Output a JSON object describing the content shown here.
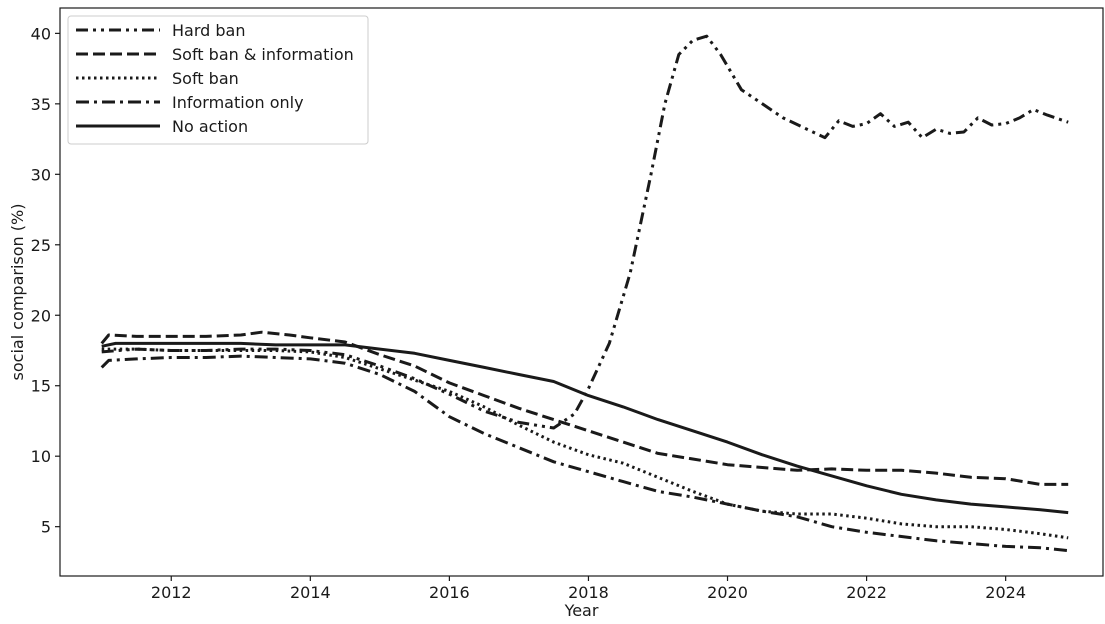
{
  "chart_data": {
    "type": "line",
    "title": "",
    "xlabel": "Year",
    "ylabel": "social comparison (%)",
    "xlim": [
      2010.4,
      2025.4
    ],
    "ylim": [
      1.5,
      41.8
    ],
    "xticks": [
      2012,
      2014,
      2016,
      2018,
      2020,
      2022,
      2024
    ],
    "xtick_labels": [
      "2012",
      "2014",
      "2016",
      "2018",
      "2020",
      "2022",
      "2024"
    ],
    "yticks": [
      5,
      10,
      15,
      20,
      25,
      30,
      35,
      40
    ],
    "ytick_labels": [
      "5",
      "10",
      "15",
      "20",
      "25",
      "30",
      "35",
      "40"
    ],
    "grid": false,
    "legend_position": "top-left",
    "line_color": "#1a1a1a",
    "series": [
      {
        "name": "Hard ban",
        "style": "dashdotdot",
        "points": [
          [
            2011.0,
            17.4
          ],
          [
            2011.5,
            17.6
          ],
          [
            2012.0,
            17.5
          ],
          [
            2012.5,
            17.5
          ],
          [
            2013.0,
            17.6
          ],
          [
            2013.5,
            17.6
          ],
          [
            2014.0,
            17.5
          ],
          [
            2014.5,
            17.2
          ],
          [
            2015.0,
            16.4
          ],
          [
            2015.5,
            15.5
          ],
          [
            2016.0,
            14.4
          ],
          [
            2016.5,
            13.2
          ],
          [
            2017.0,
            12.4
          ],
          [
            2017.5,
            12.0
          ],
          [
            2017.8,
            13.0
          ],
          [
            2018.0,
            14.8
          ],
          [
            2018.3,
            18.0
          ],
          [
            2018.6,
            23.0
          ],
          [
            2018.9,
            30.0
          ],
          [
            2019.1,
            35.0
          ],
          [
            2019.3,
            38.5
          ],
          [
            2019.5,
            39.5
          ],
          [
            2019.7,
            39.8
          ],
          [
            2019.9,
            38.5
          ],
          [
            2020.2,
            36.0
          ],
          [
            2020.5,
            35.0
          ],
          [
            2020.8,
            34.0
          ],
          [
            2021.1,
            33.3
          ],
          [
            2021.4,
            32.6
          ],
          [
            2021.6,
            33.8
          ],
          [
            2021.8,
            33.4
          ],
          [
            2022.0,
            33.6
          ],
          [
            2022.2,
            34.3
          ],
          [
            2022.4,
            33.4
          ],
          [
            2022.6,
            33.7
          ],
          [
            2022.8,
            32.6
          ],
          [
            2023.0,
            33.2
          ],
          [
            2023.2,
            32.9
          ],
          [
            2023.4,
            33.0
          ],
          [
            2023.6,
            34.0
          ],
          [
            2023.8,
            33.5
          ],
          [
            2024.0,
            33.6
          ],
          [
            2024.2,
            34.0
          ],
          [
            2024.4,
            34.6
          ],
          [
            2024.6,
            34.2
          ],
          [
            2024.9,
            33.7
          ]
        ]
      },
      {
        "name": "Soft ban & information",
        "style": "dashed",
        "points": [
          [
            2011.0,
            18.0
          ],
          [
            2011.1,
            18.6
          ],
          [
            2011.5,
            18.5
          ],
          [
            2012.0,
            18.5
          ],
          [
            2012.5,
            18.5
          ],
          [
            2013.0,
            18.6
          ],
          [
            2013.3,
            18.8
          ],
          [
            2013.7,
            18.6
          ],
          [
            2014.0,
            18.4
          ],
          [
            2014.5,
            18.1
          ],
          [
            2015.0,
            17.2
          ],
          [
            2015.5,
            16.4
          ],
          [
            2016.0,
            15.2
          ],
          [
            2016.5,
            14.3
          ],
          [
            2017.0,
            13.4
          ],
          [
            2017.5,
            12.6
          ],
          [
            2018.0,
            11.8
          ],
          [
            2018.5,
            11.0
          ],
          [
            2019.0,
            10.2
          ],
          [
            2019.5,
            9.8
          ],
          [
            2020.0,
            9.4
          ],
          [
            2020.5,
            9.2
          ],
          [
            2021.0,
            9.0
          ],
          [
            2021.5,
            9.1
          ],
          [
            2022.0,
            9.0
          ],
          [
            2022.5,
            9.0
          ],
          [
            2023.0,
            8.8
          ],
          [
            2023.5,
            8.5
          ],
          [
            2024.0,
            8.4
          ],
          [
            2024.5,
            8.0
          ],
          [
            2024.9,
            8.0
          ]
        ]
      },
      {
        "name": "Soft ban",
        "style": "dotted",
        "points": [
          [
            2011.0,
            17.6
          ],
          [
            2011.5,
            17.6
          ],
          [
            2012.0,
            17.5
          ],
          [
            2012.5,
            17.5
          ],
          [
            2013.0,
            17.5
          ],
          [
            2013.5,
            17.5
          ],
          [
            2014.0,
            17.4
          ],
          [
            2014.5,
            17.0
          ],
          [
            2015.0,
            16.2
          ],
          [
            2015.5,
            15.4
          ],
          [
            2016.0,
            14.6
          ],
          [
            2016.5,
            13.5
          ],
          [
            2017.0,
            12.2
          ],
          [
            2017.5,
            11.0
          ],
          [
            2018.0,
            10.1
          ],
          [
            2018.5,
            9.5
          ],
          [
            2019.0,
            8.5
          ],
          [
            2019.5,
            7.5
          ],
          [
            2020.0,
            6.6
          ],
          [
            2020.5,
            6.1
          ],
          [
            2021.0,
            5.9
          ],
          [
            2021.5,
            5.9
          ],
          [
            2022.0,
            5.6
          ],
          [
            2022.5,
            5.2
          ],
          [
            2023.0,
            5.0
          ],
          [
            2023.5,
            5.0
          ],
          [
            2024.0,
            4.8
          ],
          [
            2024.5,
            4.5
          ],
          [
            2024.9,
            4.2
          ]
        ]
      },
      {
        "name": "Information only",
        "style": "dashdot",
        "points": [
          [
            2011.0,
            16.3
          ],
          [
            2011.1,
            16.8
          ],
          [
            2011.5,
            16.9
          ],
          [
            2012.0,
            17.0
          ],
          [
            2012.5,
            17.0
          ],
          [
            2013.0,
            17.1
          ],
          [
            2013.5,
            17.0
          ],
          [
            2014.0,
            16.9
          ],
          [
            2014.5,
            16.6
          ],
          [
            2015.0,
            15.8
          ],
          [
            2015.5,
            14.6
          ],
          [
            2016.0,
            12.8
          ],
          [
            2016.5,
            11.6
          ],
          [
            2017.0,
            10.6
          ],
          [
            2017.5,
            9.6
          ],
          [
            2018.0,
            8.9
          ],
          [
            2018.5,
            8.2
          ],
          [
            2019.0,
            7.5
          ],
          [
            2019.5,
            7.1
          ],
          [
            2020.0,
            6.6
          ],
          [
            2020.5,
            6.1
          ],
          [
            2021.0,
            5.7
          ],
          [
            2021.5,
            5.0
          ],
          [
            2022.0,
            4.6
          ],
          [
            2022.5,
            4.3
          ],
          [
            2023.0,
            4.0
          ],
          [
            2023.5,
            3.8
          ],
          [
            2024.0,
            3.6
          ],
          [
            2024.5,
            3.5
          ],
          [
            2024.9,
            3.3
          ]
        ]
      },
      {
        "name": "No action",
        "style": "solid",
        "points": [
          [
            2011.0,
            17.8
          ],
          [
            2011.2,
            18.0
          ],
          [
            2011.5,
            18.0
          ],
          [
            2012.0,
            18.0
          ],
          [
            2012.5,
            18.0
          ],
          [
            2013.0,
            18.0
          ],
          [
            2013.5,
            17.9
          ],
          [
            2014.0,
            17.9
          ],
          [
            2014.5,
            17.9
          ],
          [
            2015.0,
            17.6
          ],
          [
            2015.5,
            17.3
          ],
          [
            2016.0,
            16.8
          ],
          [
            2016.5,
            16.3
          ],
          [
            2017.0,
            15.8
          ],
          [
            2017.5,
            15.3
          ],
          [
            2018.0,
            14.3
          ],
          [
            2018.5,
            13.5
          ],
          [
            2019.0,
            12.6
          ],
          [
            2019.5,
            11.8
          ],
          [
            2020.0,
            11.0
          ],
          [
            2020.5,
            10.1
          ],
          [
            2021.0,
            9.3
          ],
          [
            2021.5,
            8.6
          ],
          [
            2022.0,
            7.9
          ],
          [
            2022.5,
            7.3
          ],
          [
            2023.0,
            6.9
          ],
          [
            2023.5,
            6.6
          ],
          [
            2024.0,
            6.4
          ],
          [
            2024.5,
            6.2
          ],
          [
            2024.9,
            6.0
          ]
        ]
      }
    ]
  }
}
